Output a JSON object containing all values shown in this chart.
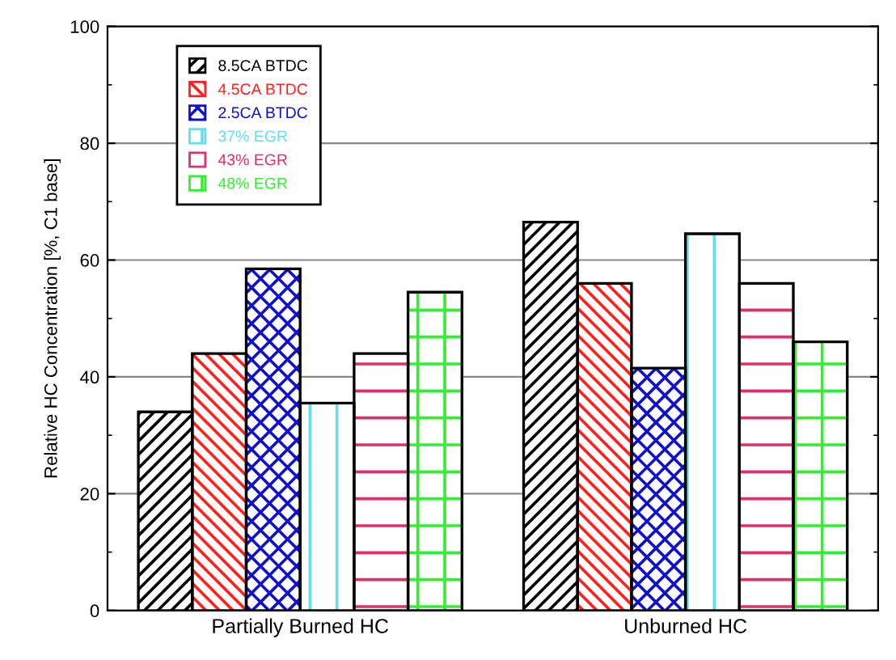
{
  "chart_data": {
    "type": "bar",
    "ylabel": "Relative HC Concentration [%, C1 base]",
    "categories": [
      "Partially Burned HC",
      "Unburned HC"
    ],
    "series": [
      {
        "name": "8.5CA BTDC",
        "color": "#000000",
        "values": [
          34,
          66.5
        ]
      },
      {
        "name": "4.5CA BTDC",
        "color": "#ff2020",
        "values": [
          44,
          56
        ]
      },
      {
        "name": "2.5CA BTDC",
        "color": "#1010cc",
        "values": [
          58.5,
          41.5
        ]
      },
      {
        "name": "37% EGR",
        "color": "#66ddee",
        "values": [
          35.5,
          64.5
        ]
      },
      {
        "name": "43% EGR",
        "color": "#e0306a",
        "values": [
          44,
          56
        ]
      },
      {
        "name": "48% EGR",
        "color": "#33ee33",
        "values": [
          54.5,
          46
        ]
      }
    ],
    "ylim": [
      0,
      100
    ],
    "yticks": [
      0,
      20,
      40,
      60,
      80,
      100
    ],
    "grid": "y",
    "legend": "top left"
  }
}
